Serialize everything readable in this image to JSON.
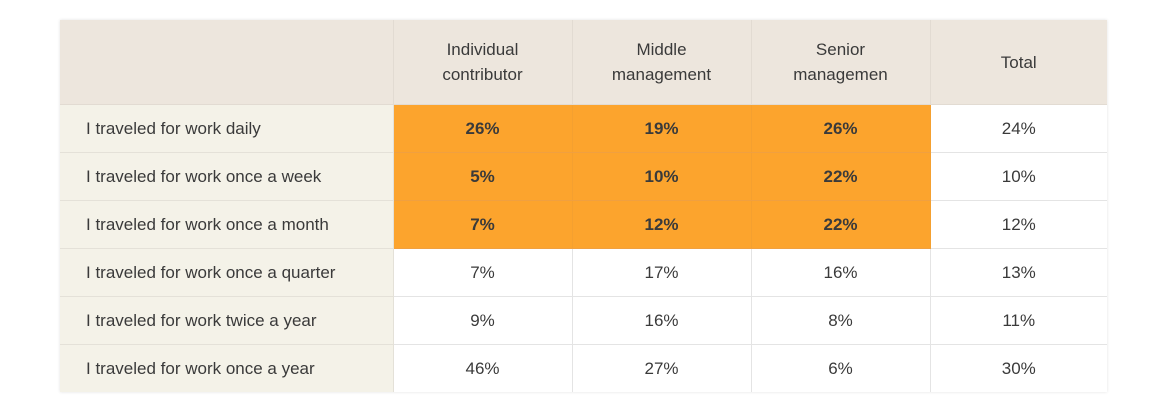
{
  "chart_data": {
    "type": "table",
    "columns": [
      "",
      "Individual contributor",
      "Middle management",
      "Senior managemen",
      "Total"
    ],
    "rows": [
      {
        "label": "I traveled for work daily",
        "values": [
          "26%",
          "19%",
          "26%",
          "24%"
        ],
        "highlight": [
          true,
          true,
          true,
          false
        ]
      },
      {
        "label": "I traveled for work once a week",
        "values": [
          "5%",
          "10%",
          "22%",
          "10%"
        ],
        "highlight": [
          true,
          true,
          true,
          false
        ]
      },
      {
        "label": "I traveled for work once a month",
        "values": [
          "7%",
          "12%",
          "22%",
          "12%"
        ],
        "highlight": [
          true,
          true,
          true,
          false
        ]
      },
      {
        "label": "I traveled for work once a quarter",
        "values": [
          "7%",
          "17%",
          "16%",
          "13%"
        ],
        "highlight": [
          false,
          false,
          false,
          false
        ]
      },
      {
        "label": "I traveled for work twice a year",
        "values": [
          "9%",
          "16%",
          "8%",
          "11%"
        ],
        "highlight": [
          false,
          false,
          false,
          false
        ]
      },
      {
        "label": "I traveled for work once a year",
        "values": [
          "46%",
          "27%",
          "6%",
          "30%"
        ],
        "highlight": [
          false,
          false,
          false,
          false
        ]
      }
    ]
  },
  "colors": {
    "header_bg": "#ede6dd",
    "label_bg": "#f4f2e8",
    "highlight": "#fca42d",
    "cell_bg": "#ffffff",
    "text": "#3a3a3a"
  }
}
